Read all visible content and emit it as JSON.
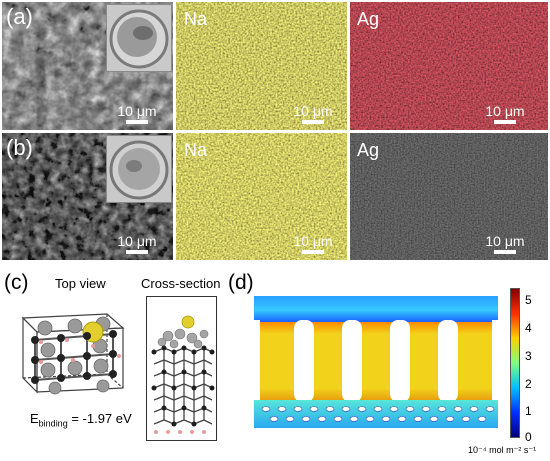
{
  "figure": {
    "row_a": {
      "label": "(a)",
      "sem": {
        "scale_label": "10 μm"
      },
      "na_map": {
        "element": "Na",
        "color": "#c8c238",
        "scale_label": "10 μm"
      },
      "ag_map": {
        "element": "Ag",
        "color": "#b01e2a",
        "scale_label": "10 μm"
      }
    },
    "row_b": {
      "label": "(b)",
      "sem": {
        "scale_label": "10 μm"
      },
      "na_map": {
        "element": "Na",
        "color": "#c8c238",
        "scale_label": "10 μm"
      },
      "ag_map": {
        "element": "Ag",
        "color": "#2a2a2a",
        "scale_label": "10 μm"
      }
    },
    "panel_c": {
      "label": "(c)",
      "top_view_title": "Top view",
      "cross_section_title": "Cross-section",
      "binding_prefix": "E",
      "binding_subscript": "binding",
      "binding_value": " = -1.97 eV"
    },
    "panel_d": {
      "label": "(d)",
      "colorbar": {
        "ticks": [
          "5",
          "4",
          "3",
          "2",
          "1",
          "0"
        ],
        "unit_label": "10⁻⁴ mol m⁻² s⁻¹",
        "colors": [
          "#800000",
          "#ff3000",
          "#ffd000",
          "#80ff80",
          "#00c0ff",
          "#0030ff",
          "#000080"
        ]
      }
    }
  }
}
